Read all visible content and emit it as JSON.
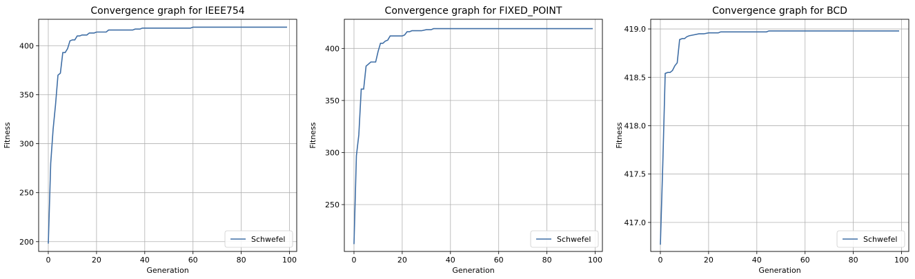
{
  "chart_data": [
    {
      "type": "line",
      "title": "Convergence graph for IEEE754",
      "xlabel": "Generation",
      "ylabel": "Fitness",
      "xlim": [
        -4,
        103
      ],
      "ylim": [
        190,
        427
      ],
      "xticks": [
        0,
        20,
        40,
        60,
        80,
        100
      ],
      "yticks": [
        200,
        250,
        300,
        350,
        400
      ],
      "ytick_labels": [
        "200",
        "250",
        "300",
        "350",
        "400"
      ],
      "grid": true,
      "legend_position": "lower-right",
      "color": "#3f6ea5",
      "series": [
        {
          "name": "Schwefel",
          "x": [
            0,
            1,
            2,
            3,
            4,
            5,
            6,
            7,
            8,
            9,
            10,
            11,
            12,
            13,
            14,
            15,
            16,
            17,
            18,
            19,
            20,
            22,
            24,
            25,
            26,
            28,
            30,
            32,
            34,
            35,
            36,
            37,
            38,
            39,
            40,
            45,
            50,
            55,
            58,
            59,
            60,
            62,
            64,
            66,
            70,
            80,
            90,
            99
          ],
          "y": [
            198,
            280,
            315,
            340,
            370,
            372,
            393,
            393,
            397,
            405,
            406,
            406,
            410,
            410,
            411,
            411,
            411,
            413,
            413,
            413,
            414,
            414,
            414,
            416,
            416,
            416,
            416,
            416,
            416,
            416,
            417,
            417,
            417,
            418,
            418,
            418,
            418,
            418,
            418,
            418,
            419,
            419,
            419,
            419,
            419,
            419,
            419,
            419
          ]
        }
      ]
    },
    {
      "type": "line",
      "title": "Convergence graph for FIXED_POINT",
      "xlabel": "Generation",
      "ylabel": "Fitness",
      "xlim": [
        -4,
        103
      ],
      "ylim": [
        205,
        428
      ],
      "xticks": [
        0,
        20,
        40,
        60,
        80,
        100
      ],
      "yticks": [
        250,
        300,
        350,
        400
      ],
      "ytick_labels": [
        "250",
        "300",
        "350",
        "400"
      ],
      "grid": true,
      "legend_position": "lower-right",
      "color": "#3f6ea5",
      "series": [
        {
          "name": "Schwefel",
          "x": [
            0,
            1,
            2,
            3,
            4,
            5,
            6,
            7,
            8,
            9,
            10,
            11,
            12,
            13,
            14,
            15,
            16,
            17,
            18,
            19,
            20,
            21,
            22,
            23,
            24,
            25,
            26,
            28,
            30,
            32,
            33,
            34,
            40,
            50,
            60,
            70,
            80,
            90,
            99
          ],
          "y": [
            212,
            297,
            317,
            361,
            361,
            383,
            385,
            387,
            387,
            387,
            397,
            405,
            405,
            407,
            408,
            412,
            412,
            412,
            412,
            412,
            412,
            413,
            416,
            416,
            417,
            417,
            417,
            417,
            418,
            418,
            419,
            419,
            419,
            419,
            419,
            419,
            419,
            419,
            419
          ]
        }
      ]
    },
    {
      "type": "line",
      "title": "Convergence graph for BCD",
      "xlabel": "Generation",
      "ylabel": "Fitness",
      "xlim": [
        -4,
        103
      ],
      "ylim": [
        416.7,
        419.1
      ],
      "xticks": [
        0,
        20,
        40,
        60,
        80,
        100
      ],
      "yticks": [
        417.0,
        417.5,
        418.0,
        418.5,
        419.0
      ],
      "ytick_labels": [
        "417.0",
        "417.5",
        "418.0",
        "418.5",
        "419.0"
      ],
      "grid": true,
      "legend_position": "lower-right",
      "color": "#3f6ea5",
      "series": [
        {
          "name": "Schwefel",
          "x": [
            0,
            1,
            2,
            3,
            4,
            5,
            6,
            7,
            8,
            9,
            10,
            11,
            12,
            14,
            16,
            18,
            20,
            22,
            24,
            25,
            26,
            28,
            30,
            35,
            40,
            44,
            45,
            50,
            60,
            70,
            80,
            90,
            99
          ],
          "y": [
            416.77,
            417.6,
            418.54,
            418.55,
            418.55,
            418.57,
            418.62,
            418.65,
            418.89,
            418.9,
            418.9,
            418.92,
            418.93,
            418.94,
            418.95,
            418.95,
            418.96,
            418.96,
            418.96,
            418.97,
            418.97,
            418.97,
            418.97,
            418.97,
            418.97,
            418.97,
            418.98,
            418.98,
            418.98,
            418.98,
            418.98,
            418.98,
            418.98
          ]
        }
      ]
    }
  ]
}
